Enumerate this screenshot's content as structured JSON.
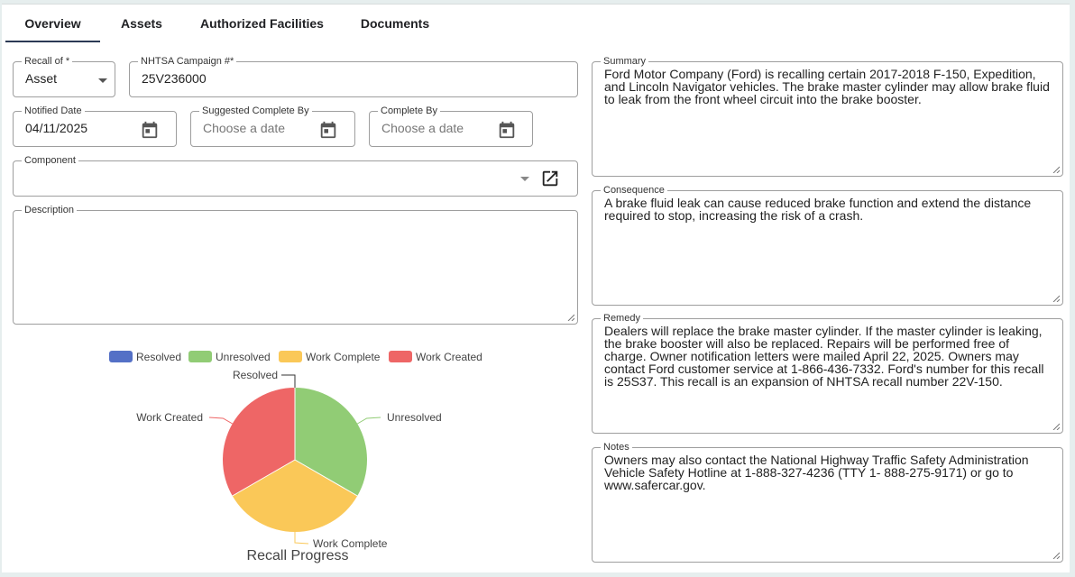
{
  "tabs": [
    {
      "label": "Overview",
      "active": true
    },
    {
      "label": "Assets",
      "active": false
    },
    {
      "label": "Authorized Facilities",
      "active": false
    },
    {
      "label": "Documents",
      "active": false
    }
  ],
  "form": {
    "recall_of": {
      "label": "Recall of *",
      "value": "Asset"
    },
    "campaign": {
      "label": "NHTSA Campaign #*",
      "value": "25V236000"
    },
    "notified_date": {
      "label": "Notified Date",
      "value": "04/11/2025"
    },
    "suggested_complete_by": {
      "label": "Suggested Complete By",
      "placeholder": "Choose a date"
    },
    "complete_by": {
      "label": "Complete By",
      "placeholder": "Choose a date"
    },
    "component": {
      "label": "Component",
      "value": ""
    },
    "description": {
      "label": "Description",
      "value": ""
    }
  },
  "side": {
    "summary": {
      "label": "Summary",
      "text": "Ford Motor Company (Ford) is recalling certain 2017-2018 F-150, Expedition, and Lincoln Navigator vehicles.  The brake master cylinder may allow brake fluid to leak from the front wheel circuit into the brake booster."
    },
    "consequence": {
      "label": "Consequence",
      "text": "A brake fluid leak can cause reduced brake function and extend the distance required to stop, increasing the risk of a crash."
    },
    "remedy": {
      "label": "Remedy",
      "text": "Dealers will replace the brake master cylinder.  If the master cylinder is leaking, the brake booster will also be replaced.  Repairs will be performed free of charge.  Owner notification letters were mailed April 22, 2025.  Owners may contact Ford customer service at 1-866-436-7332.  Ford's number for this recall is 25S37.  This recall is an expansion of NHTSA recall number 22V-150."
    },
    "notes": {
      "label": "Notes",
      "text": "Owners may also contact the National Highway Traffic Safety Administration Vehicle Safety Hotline at 1-888-327-4236 (TTY 1- 888-275-9171) or go to www.safercar.gov."
    }
  },
  "chart_data": {
    "type": "pie",
    "title": "Recall Progress",
    "legend_position": "top",
    "categories": [
      "Resolved",
      "Unresolved",
      "Work Complete",
      "Work Created"
    ],
    "values": [
      0,
      1,
      1,
      1
    ],
    "colors": [
      "#5470c6",
      "#91cc75",
      "#fac858",
      "#ee6666"
    ]
  }
}
